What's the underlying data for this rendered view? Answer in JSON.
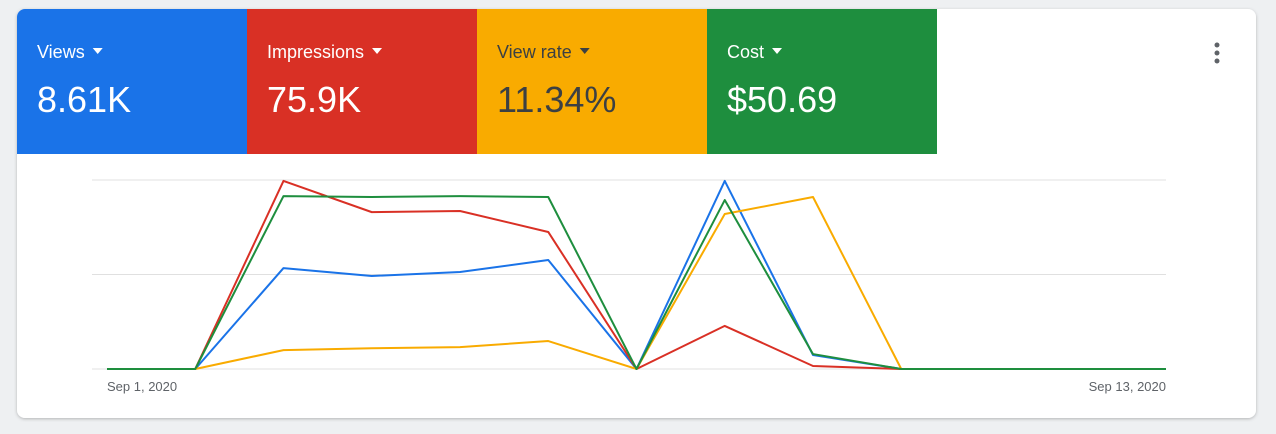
{
  "chart_data": {
    "type": "line",
    "categories": [
      "Sep 1, 2020",
      null,
      null,
      null,
      null,
      null,
      null,
      null,
      null,
      null,
      null,
      null,
      "Sep 13, 2020"
    ],
    "ylim": [
      0,
      100
    ],
    "yticks": [
      0,
      50,
      100
    ],
    "grid": true,
    "series": [
      {
        "name": "Views",
        "summary": "8.61K",
        "color": "#1a73e8",
        "text_color": "#ffffff",
        "line_color": "#1a73e8",
        "values": [
          0,
          0,
          53.4,
          49.2,
          51.3,
          57.7,
          0,
          99.5,
          7.4,
          0,
          0,
          0,
          0
        ]
      },
      {
        "name": "Impressions",
        "summary": "75.9K",
        "color": "#d93025",
        "text_color": "#ffffff",
        "line_color": "#d93025",
        "values": [
          0,
          0,
          99.5,
          83,
          83.6,
          72.5,
          0,
          22.8,
          1.6,
          0,
          0,
          0,
          0
        ]
      },
      {
        "name": "View rate",
        "summary": "11.34%",
        "color": "#f9ab00",
        "text_color": "#3c4043",
        "line_color": "#f9ab00",
        "values": [
          0,
          0,
          10,
          11,
          11.6,
          14.8,
          0,
          82,
          91,
          0,
          0,
          0,
          0
        ]
      },
      {
        "name": "Cost",
        "summary": "$50.69",
        "color": "#1e8e3e",
        "text_color": "#ffffff",
        "line_color": "#1e8e3e",
        "values": [
          0,
          0,
          91.5,
          91,
          91.5,
          91,
          0,
          89.4,
          7.9,
          0,
          0,
          0,
          0
        ]
      }
    ]
  }
}
